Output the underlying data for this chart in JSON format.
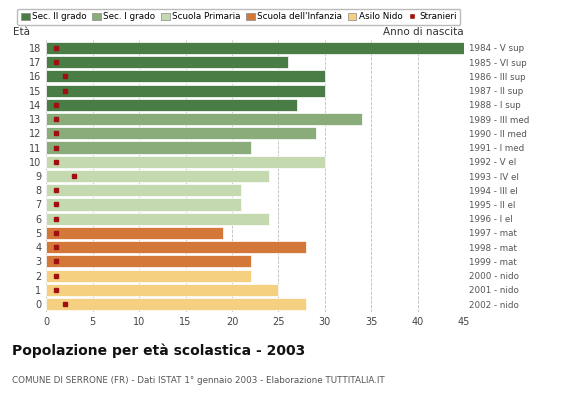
{
  "ages": [
    18,
    17,
    16,
    15,
    14,
    13,
    12,
    11,
    10,
    9,
    8,
    7,
    6,
    5,
    4,
    3,
    2,
    1,
    0
  ],
  "values": [
    45,
    26,
    30,
    30,
    27,
    34,
    29,
    22,
    30,
    24,
    21,
    21,
    24,
    19,
    28,
    22,
    22,
    25,
    28
  ],
  "stranieri": [
    1,
    1,
    2,
    2,
    1,
    1,
    1,
    1,
    1,
    3,
    1,
    1,
    1,
    1,
    1,
    1,
    1,
    1,
    2
  ],
  "anno_nascita": [
    "1984 - V sup",
    "1985 - VI sup",
    "1986 - III sup",
    "1987 - II sup",
    "1988 - I sup",
    "1989 - III med",
    "1990 - II med",
    "1991 - I med",
    "1992 - V el",
    "1993 - IV el",
    "1994 - III el",
    "1995 - II el",
    "1996 - I el",
    "1997 - mat",
    "1998 - mat",
    "1999 - mat",
    "2000 - nido",
    "2001 - nido",
    "2002 - nido"
  ],
  "colors": {
    "sec2": "#4a7c45",
    "sec1": "#8aac7a",
    "primaria": "#c5d9b0",
    "infanzia": "#d4783a",
    "nido": "#f5d080",
    "stranieri": "#a01010"
  },
  "legend_labels": [
    "Sec. II grado",
    "Sec. I grado",
    "Scuola Primaria",
    "Scuola dell'Infanzia",
    "Asilo Nido",
    "Stranieri"
  ],
  "title": "Popolazione per età scolastica - 2003",
  "subtitle": "COMUNE DI SERRONE (FR) - Dati ISTAT 1° gennaio 2003 - Elaborazione TUTTITALIA.IT",
  "xlim": [
    0,
    45
  ],
  "xticks": [
    0,
    5,
    10,
    15,
    20,
    25,
    30,
    35,
    40,
    45
  ],
  "fig_width": 5.8,
  "fig_height": 4.0,
  "dpi": 100
}
